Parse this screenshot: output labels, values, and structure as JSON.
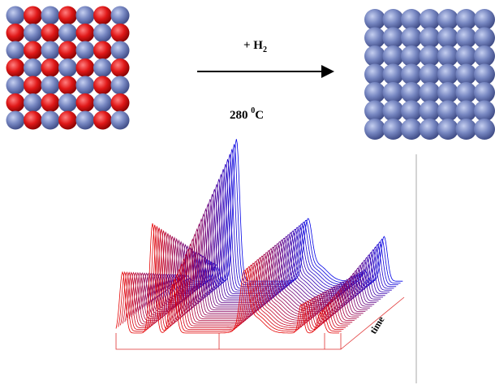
{
  "reaction": {
    "reagent": "+ H",
    "reagent_subscript": "2",
    "temperature": "280 ",
    "temperature_superscript": "0",
    "temperature_unit": "C"
  },
  "plot": {
    "axis_label": "time"
  }
}
